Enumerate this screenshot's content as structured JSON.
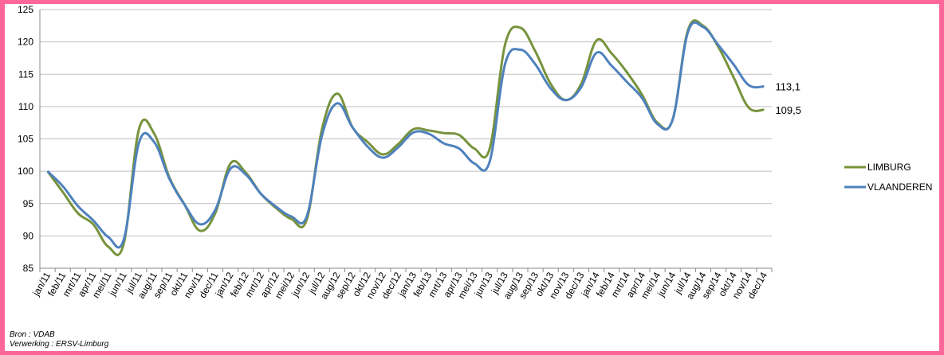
{
  "chart_data": {
    "type": "line",
    "title": "",
    "xlabel": "",
    "ylabel": "",
    "ylim": [
      85,
      125
    ],
    "yticks": [
      85,
      90,
      95,
      100,
      105,
      110,
      115,
      120,
      125
    ],
    "grid": true,
    "legend_position": "right",
    "categories": [
      "jan/11",
      "feb/11",
      "mrt/11",
      "apr/11",
      "mei/11",
      "jun/11",
      "jul/11",
      "aug/11",
      "sep/11",
      "okt/11",
      "nov/11",
      "dec/11",
      "jan/12",
      "feb/12",
      "mrt/12",
      "apr/12",
      "mei/12",
      "jun/12",
      "jul/12",
      "aug/12",
      "sep/12",
      "okt/12",
      "nov/12",
      "dec/12",
      "jan/13",
      "feb/13",
      "mrt/13",
      "apr/13",
      "mei/13",
      "jun/13",
      "jul/13",
      "aug/13",
      "sep/13",
      "okt/13",
      "nov/13",
      "dec/13",
      "jan/14",
      "feb/14",
      "mrt/14",
      "apr/14",
      "mei/14",
      "jun/14",
      "jul/14",
      "aug/14",
      "sep/14",
      "okt/14",
      "nov/14",
      "dec/14"
    ],
    "series": [
      {
        "name": "LIMBURG",
        "color": "#77933c",
        "values": [
          100,
          96.8,
          93.5,
          91.8,
          88.3,
          88.8,
          106.5,
          105.8,
          99,
          94.8,
          90.8,
          93.5,
          101.2,
          99.8,
          96.5,
          94.3,
          92.6,
          92.5,
          106.5,
          112,
          106.8,
          104.5,
          102.6,
          104.2,
          106.5,
          106.3,
          105.9,
          105.6,
          103.5,
          103.5,
          119.5,
          122.2,
          118.5,
          113.5,
          111,
          113.5,
          120.2,
          118.2,
          115.3,
          111.8,
          107.5,
          108,
          121.8,
          122.5,
          119.2,
          114.5,
          109.8,
          109.5
        ]
      },
      {
        "name": "VLAANDEREN",
        "color": "#4f81bd",
        "values": [
          100,
          97.7,
          94.6,
          92.4,
          89.8,
          89.4,
          104.4,
          104.5,
          98.8,
          94.8,
          91.8,
          94,
          100.4,
          99.5,
          96.5,
          94.5,
          93,
          93,
          105.5,
          110.5,
          106.8,
          103.8,
          102.1,
          103.7,
          106,
          105.8,
          104.3,
          103.5,
          101.2,
          101.5,
          116.5,
          118.8,
          116.5,
          112.8,
          111,
          113,
          118.3,
          116.3,
          113.8,
          111.3,
          107.3,
          108,
          121.5,
          122.3,
          119.5,
          116.5,
          113.3,
          113.1
        ]
      }
    ],
    "end_labels": [
      "113,1",
      "109,5"
    ]
  },
  "source": {
    "line1": "Bron : VDAB",
    "line2": "Verwerking : ERSV-Limburg"
  }
}
